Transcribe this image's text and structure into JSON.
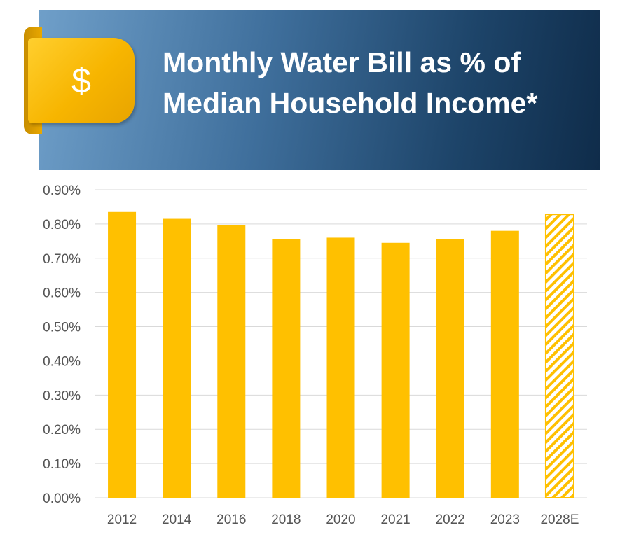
{
  "header": {
    "icon": "dollar-sign-icon",
    "icon_glyph": "$",
    "title_line1": "Monthly Water Bill as % of",
    "title_line2": "Median Household Income*"
  },
  "colors": {
    "bar": "#FFC000",
    "grid": "#D9D9D9",
    "banner_dark": "#0F2C4A",
    "banner_light": "#6F9FC9"
  },
  "chart_data": {
    "type": "bar",
    "title": "Monthly Water Bill as % of Median Household Income*",
    "xlabel": "",
    "ylabel": "",
    "categories": [
      "2012",
      "2014",
      "2016",
      "2018",
      "2020",
      "2021",
      "2022",
      "2023",
      "2028E"
    ],
    "values": [
      0.835,
      0.815,
      0.797,
      0.755,
      0.76,
      0.745,
      0.755,
      0.78,
      0.828
    ],
    "estimated": [
      false,
      false,
      false,
      false,
      false,
      false,
      false,
      false,
      true
    ],
    "ylim": [
      0,
      0.9
    ],
    "yticks": [
      0,
      0.1,
      0.2,
      0.3,
      0.4,
      0.5,
      0.6,
      0.7,
      0.8,
      0.9
    ],
    "ytick_labels": [
      "0.00%",
      "0.10%",
      "0.20%",
      "0.30%",
      "0.40%",
      "0.50%",
      "0.60%",
      "0.70%",
      "0.80%",
      "0.90%"
    ],
    "grid": true,
    "legend": "none"
  }
}
